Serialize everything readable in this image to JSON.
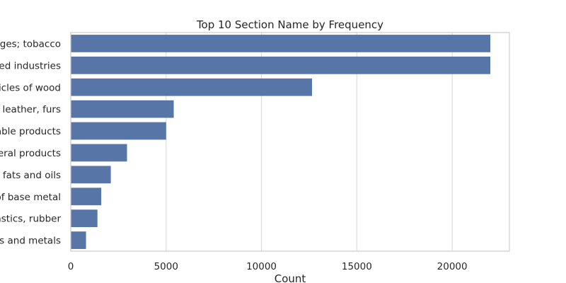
{
  "chart_data": {
    "type": "bar",
    "orientation": "horizontal",
    "title": "Top 10 Section Name by Frequency",
    "xlabel": "Count",
    "ylabel": "",
    "xlim": [
      0,
      23000
    ],
    "xticks": [
      0,
      5000,
      10000,
      15000,
      20000
    ],
    "xtick_labels": [
      "0",
      "5000",
      "10000",
      "15000",
      "20000"
    ],
    "grid": "vertical",
    "bar_color": "#5875a8",
    "categories": [
      "ges; tobacco",
      "ed industries",
      "icles of wood",
      ", leather, furs",
      "able products",
      "eral products",
      " fats and oils",
      "of base metal",
      "astics, rubber",
      "s and metals"
    ],
    "values": [
      22000,
      22000,
      12650,
      5400,
      5000,
      2950,
      2100,
      1600,
      1400,
      800
    ]
  }
}
